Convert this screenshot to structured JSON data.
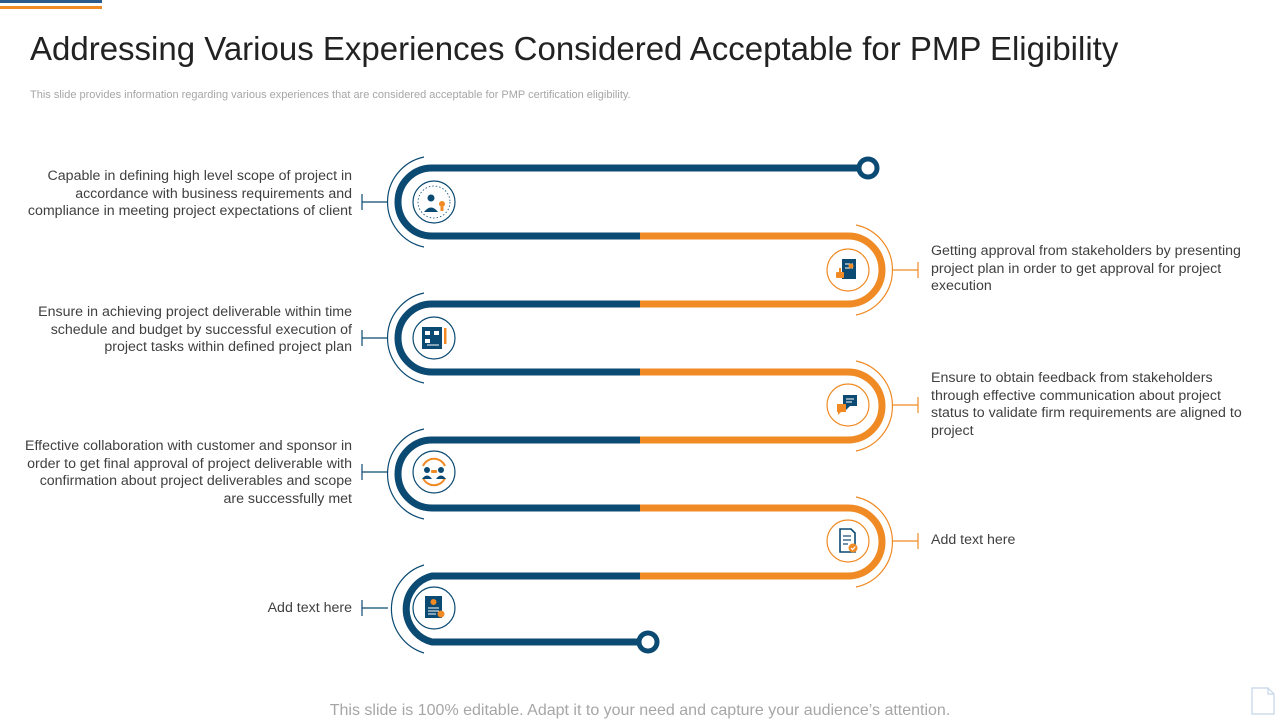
{
  "title": "Addressing Various Experiences Considered Acceptable for PMP Eligibility",
  "subtitle": "This slide provides information regarding various experiences that are considered acceptable for PMP certification eligibility.",
  "colors": {
    "navy": "#0b4a72",
    "orange": "#f08a24",
    "text": "#404040",
    "muted": "#a6a6a6"
  },
  "steps": [
    {
      "text": "Capable in defining high level scope of project in accordance with business requirements and compliance in meeting project expectations of client",
      "side": "left",
      "icon": "user-idea-icon"
    },
    {
      "text": "Getting approval from stakeholders by presenting project plan in order to get approval for project execution",
      "side": "right",
      "icon": "approval-document-icon"
    },
    {
      "text": "Ensure in achieving project deliverable within time schedule and budget by successful execution of project tasks within defined project plan",
      "side": "left",
      "icon": "project-plan-board-icon"
    },
    {
      "text": "Ensure to obtain feedback from stakeholders through effective communication about project status to validate firm requirements are aligned to project",
      "side": "right",
      "icon": "feedback-chat-icon"
    },
    {
      "text": "Effective collaboration with customer and sponsor in order to get final approval of project deliverable with confirmation about project deliverables and scope are successfully met",
      "side": "left",
      "icon": "collaboration-people-icon"
    },
    {
      "text": "Add text here",
      "side": "right",
      "icon": "checked-document-icon"
    },
    {
      "text": "Add text here",
      "side": "left",
      "icon": "certificate-icon"
    }
  ],
  "footer": "This slide is 100% editable. Adapt it to your need and capture your audience’s attention."
}
